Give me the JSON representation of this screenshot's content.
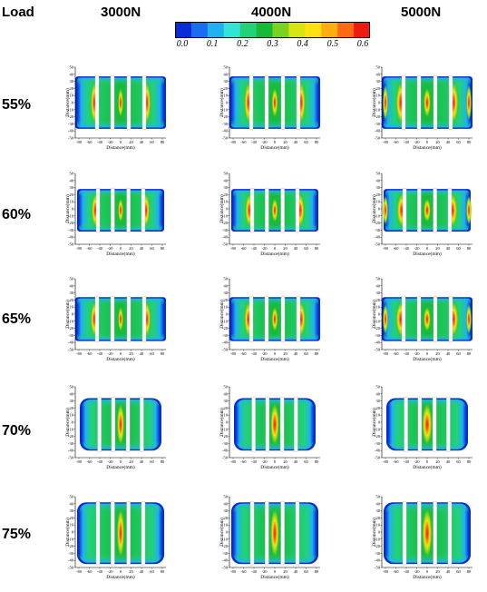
{
  "header": {
    "row_axis_label": "Load",
    "columns": [
      "3000N",
      "4000N",
      "5000N"
    ]
  },
  "colorbar": {
    "ticks": [
      "0.0",
      "0.1",
      "0.2",
      "0.3",
      "0.4",
      "0.5",
      "0.6"
    ],
    "colors": [
      "#0b2bd6",
      "#1a6cf0",
      "#1fb2ef",
      "#2fe6d6",
      "#22d27a",
      "#18b83a",
      "#7ad21e",
      "#d8e40f",
      "#ffe010",
      "#ffae10",
      "#ff6a12",
      "#ee1b12"
    ]
  },
  "rows": [
    {
      "label": "55%"
    },
    {
      "label": "60%"
    },
    {
      "label": "65%"
    },
    {
      "label": "70%"
    },
    {
      "label": "75%"
    }
  ],
  "panel": {
    "xlabel": "Distance(mm)",
    "ylabel": "Distance(mm)",
    "xticks": [
      "-80",
      "-60",
      "-40",
      "-20",
      "0",
      "20",
      "40",
      "60",
      "80"
    ],
    "yticks": [
      "50",
      "40",
      "30",
      "20",
      "10",
      "0",
      "-10",
      "-20",
      "-30",
      "-40",
      "-50"
    ]
  },
  "chart_data": {
    "type": "heatmap",
    "description_of_grid": "5 rows (load %) x 3 columns (force) contact pressure maps",
    "row_categories": [
      "55%",
      "60%",
      "65%",
      "70%",
      "75%"
    ],
    "col_categories": [
      "3000N",
      "4000N",
      "5000N"
    ],
    "colorbar_range": [
      0.0,
      0.6
    ],
    "x_range": [
      -80,
      80
    ],
    "y_range": [
      -50,
      50
    ]
  }
}
